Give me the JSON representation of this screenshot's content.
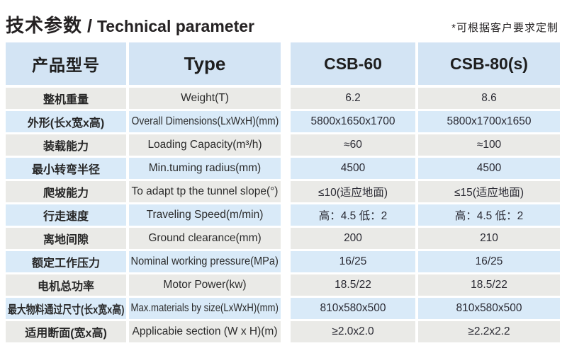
{
  "header": {
    "title_cn": "技术参数",
    "title_sep": "/",
    "title_en": "Technical parameter",
    "note": "*可根据客户要求定制"
  },
  "table": {
    "columns": {
      "label_cn": "产品型号",
      "label_en": "Type",
      "model_1": "CSB-60",
      "model_2": "CSB-80(s)"
    },
    "rows": [
      {
        "cn": "整机重量",
        "en": "Weight(T)",
        "csb60": "6.2",
        "csb80": "8.6"
      },
      {
        "cn": "外形(长x宽x高)",
        "en": "Overall Dimensions(LxWxH)(mm)",
        "csb60": "5800x1650x1700",
        "csb80": "5800x1700x1650"
      },
      {
        "cn": "装载能力",
        "en": "Loading Capacity(m³/h)",
        "csb60": "≈60",
        "csb80": "≈100"
      },
      {
        "cn": "最小转弯半径",
        "en": "Min.tuming radius(mm)",
        "csb60": "4500",
        "csb80": "4500"
      },
      {
        "cn": "爬坡能力",
        "en": "To adapt tp the tunnel slope(°)",
        "csb60": "≤10(适应地面)",
        "csb80": "≤15(适应地面)"
      },
      {
        "cn": "行走速度",
        "en": "Traveling Speed(m/min)",
        "csb60": "高：4.5 低：2",
        "csb80": "高：4.5 低：2"
      },
      {
        "cn": "离地间隙",
        "en": "Ground clearance(mm)",
        "csb60": "200",
        "csb80": "210"
      },
      {
        "cn": "额定工作压力",
        "en": "Nominal working pressure(MPa)",
        "csb60": "16/25",
        "csb80": "16/25"
      },
      {
        "cn": "电机总功率",
        "en": "Motor Power(kw)",
        "csb60": "18.5/22",
        "csb80": "18.5/22"
      },
      {
        "cn": "最大物料通过尺寸(长x宽x高)",
        "en": "Max.materials by size(LxWxH)(mm)",
        "csb60": "810x580x500",
        "csb80": "810x580x500"
      },
      {
        "cn": "适用断面(宽x高)",
        "en": "Applicabie section (W x H)(m)",
        "csb60": "≥2.0x2.0",
        "csb80": "≥2.2x2.2"
      }
    ],
    "colors": {
      "header_bg": "#d3e4f4",
      "row_blue": "#d9eaf8",
      "row_gray": "#eaeae7"
    }
  }
}
